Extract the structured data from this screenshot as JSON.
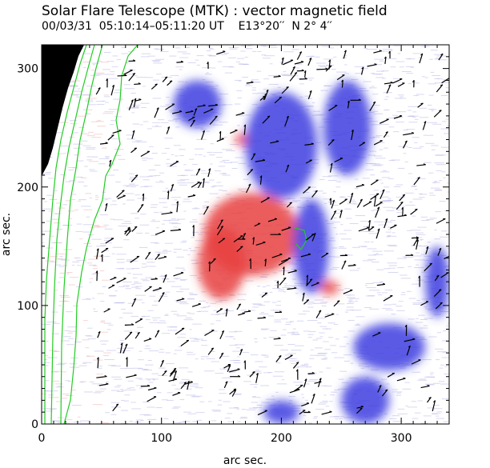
{
  "header": {
    "title": "Solar Flare Telescope (MTK) : vector magnetic field",
    "subtitle": "00/03/31  05:10:14–05:11:20 UT    E13°20′′  N 2° 4′′"
  },
  "colors": {
    "positive": "#e84040",
    "negative": "#3c3ce0",
    "contour": "#22cc22",
    "background_texture": "#b8b8e8",
    "arrow": "#000000"
  },
  "chart_data": {
    "type": "heatmap",
    "title": "Solar Flare Telescope (MTK) : vector magnetic field",
    "xlabel": "arc sec.",
    "ylabel": "arc sec.",
    "xlim": [
      0,
      340
    ],
    "ylim": [
      0,
      320
    ],
    "x_ticks": [
      "0",
      "100",
      "200",
      "300"
    ],
    "y_ticks": [
      "0",
      "100",
      "200",
      "300"
    ],
    "x_tick_values": [
      0,
      100,
      200,
      300
    ],
    "y_tick_values": [
      0,
      100,
      200,
      300
    ],
    "regions": [
      {
        "polarity": "positive",
        "cx": 175,
        "cy": 160,
        "rx": 40,
        "ry": 35
      },
      {
        "polarity": "positive",
        "cx": 150,
        "cy": 135,
        "rx": 20,
        "ry": 30
      },
      {
        "polarity": "positive",
        "cx": 240,
        "cy": 115,
        "rx": 8,
        "ry": 6
      },
      {
        "polarity": "positive",
        "cx": 167,
        "cy": 240,
        "rx": 6,
        "ry": 5
      },
      {
        "polarity": "negative",
        "cx": 225,
        "cy": 150,
        "rx": 15,
        "ry": 40
      },
      {
        "polarity": "negative",
        "cx": 200,
        "cy": 235,
        "rx": 30,
        "ry": 45
      },
      {
        "polarity": "negative",
        "cx": 255,
        "cy": 250,
        "rx": 20,
        "ry": 40
      },
      {
        "polarity": "negative",
        "cx": 130,
        "cy": 270,
        "rx": 20,
        "ry": 20
      },
      {
        "polarity": "negative",
        "cx": 290,
        "cy": 65,
        "rx": 30,
        "ry": 20
      },
      {
        "polarity": "negative",
        "cx": 330,
        "cy": 120,
        "rx": 10,
        "ry": 30
      },
      {
        "polarity": "negative",
        "cx": 270,
        "cy": 20,
        "rx": 20,
        "ry": 20
      },
      {
        "polarity": "negative",
        "cx": 200,
        "cy": 10,
        "rx": 15,
        "ry": 10
      }
    ]
  }
}
